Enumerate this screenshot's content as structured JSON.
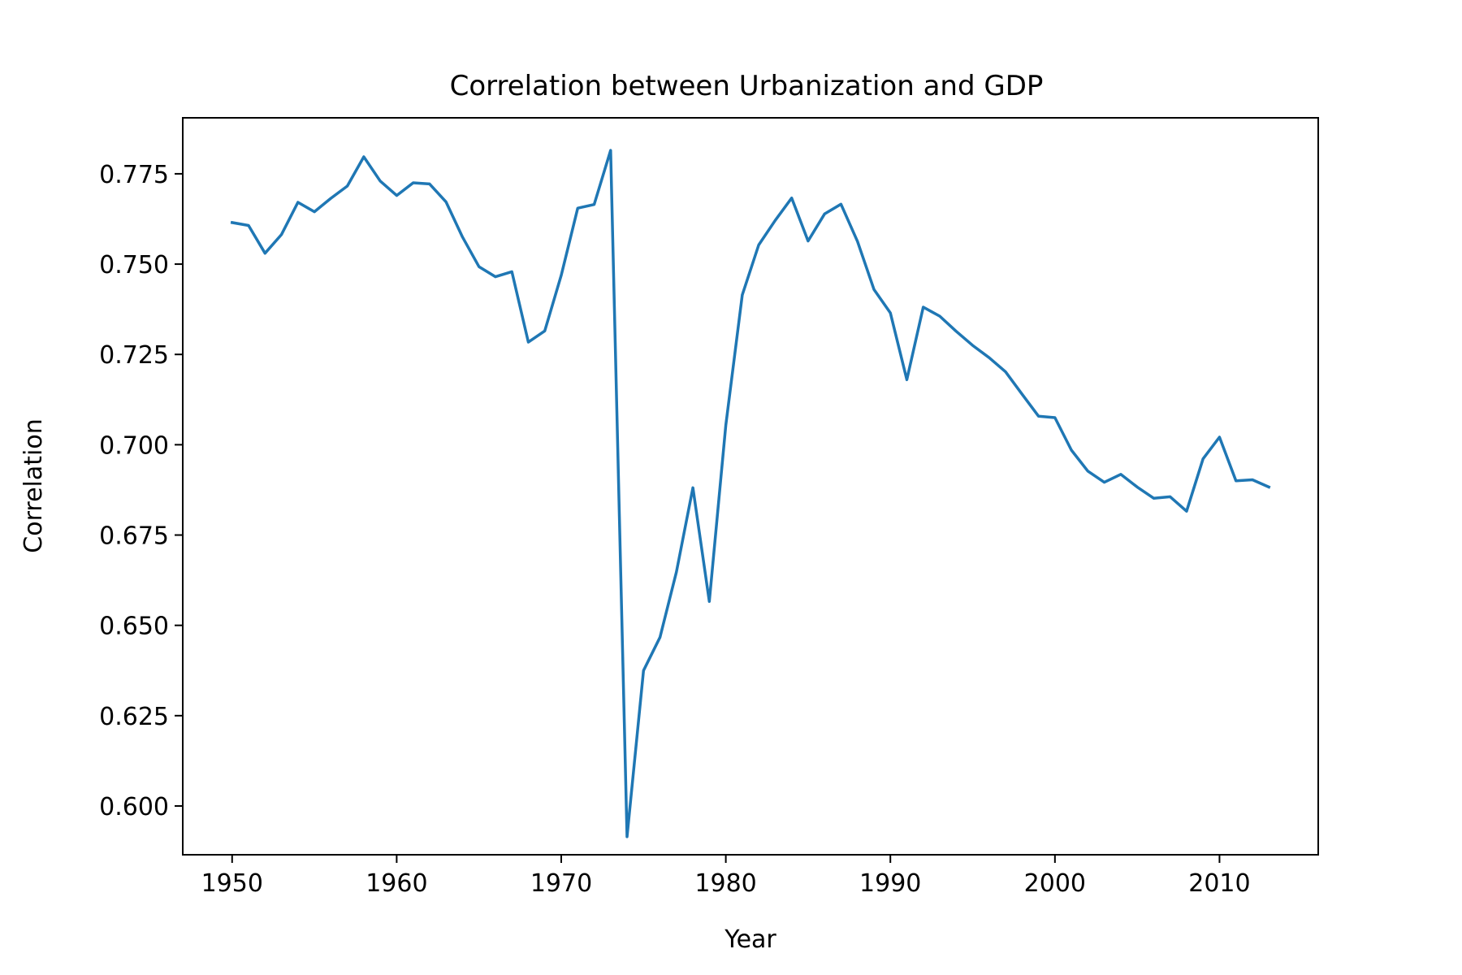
{
  "chart_data": {
    "type": "line",
    "title": "Correlation between Urbanization and GDP",
    "xlabel": "Year",
    "ylabel": "Correlation",
    "xlim": [
      1947,
      2016
    ],
    "ylim": [
      0.5865,
      0.7905
    ],
    "xticks": [
      1950,
      1960,
      1970,
      1980,
      1990,
      2000,
      2010
    ],
    "yticks": [
      0.6,
      0.625,
      0.65,
      0.675,
      0.7,
      0.725,
      0.75,
      0.775
    ],
    "ytick_labels": [
      "0.600",
      "0.625",
      "0.650",
      "0.675",
      "0.700",
      "0.725",
      "0.750",
      "0.775"
    ],
    "xtick_labels": [
      "1950",
      "1960",
      "1970",
      "1980",
      "1990",
      "2000",
      "2010"
    ],
    "grid": false,
    "series": [
      {
        "color": "#1f77b4",
        "x": [
          1950,
          1951,
          1952,
          1953,
          1954,
          1955,
          1956,
          1957,
          1958,
          1959,
          1960,
          1961,
          1962,
          1963,
          1964,
          1965,
          1966,
          1967,
          1968,
          1969,
          1970,
          1971,
          1972,
          1973,
          1974,
          1975,
          1976,
          1977,
          1978,
          1979,
          1980,
          1981,
          1982,
          1983,
          1984,
          1985,
          1986,
          1987,
          1988,
          1989,
          1990,
          1991,
          1992,
          1993,
          1994,
          1995,
          1996,
          1997,
          1998,
          1999,
          2000,
          2001,
          2002,
          2003,
          2004,
          2005,
          2006,
          2007,
          2008,
          2009,
          2010,
          2011,
          2012,
          2013
        ],
        "y": [
          0.7615,
          0.7607,
          0.753,
          0.7582,
          0.7671,
          0.7645,
          0.7682,
          0.7716,
          0.7797,
          0.773,
          0.769,
          0.7725,
          0.7722,
          0.7672,
          0.7575,
          0.7493,
          0.7465,
          0.7479,
          0.7284,
          0.7315,
          0.7469,
          0.7655,
          0.7665,
          0.7815,
          0.5915,
          0.6375,
          0.6467,
          0.6648,
          0.6881,
          0.6566,
          0.7054,
          0.7415,
          0.7553,
          0.7621,
          0.7683,
          0.7564,
          0.7639,
          0.7666,
          0.7563,
          0.743,
          0.7365,
          0.718,
          0.7381,
          0.7356,
          0.7314,
          0.7275,
          0.7241,
          0.7202,
          0.714,
          0.7079,
          0.7075,
          0.6985,
          0.6927,
          0.6896,
          0.6918,
          0.6883,
          0.6852,
          0.6856,
          0.6816,
          0.6961,
          0.7021,
          0.69,
          0.6903,
          0.6883
        ]
      }
    ]
  }
}
